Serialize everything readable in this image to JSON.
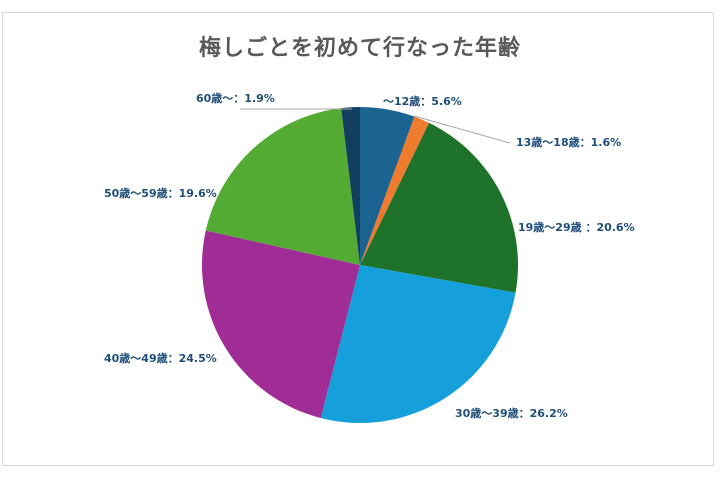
{
  "chart_data": {
    "type": "pie",
    "title": "梅しごとを初めて行なった年齢",
    "start_angle_deg": 0,
    "direction": "clockwise",
    "slices": [
      {
        "label": "〜12歳",
        "value": 5.6,
        "display": "〜12歳：5.6%",
        "color": "#1b6492"
      },
      {
        "label": "13歳〜18歳",
        "value": 1.6,
        "display": "13歳〜18歳：1.6%",
        "color": "#ef7b2f"
      },
      {
        "label": "19歳〜29歳",
        "value": 20.6,
        "display": "19歳〜29歳 ：20.6%",
        "color": "#1e7229"
      },
      {
        "label": "30歳〜39歳",
        "value": 26.2,
        "display": "30歳〜39歳：26.2%",
        "color": "#16a0db"
      },
      {
        "label": "40歳〜49歳",
        "value": 24.5,
        "display": "40歳〜49歳：24.5%",
        "color": "#a02c96"
      },
      {
        "label": "50歳〜59歳",
        "value": 19.6,
        "display": "50歳〜59歳：19.6%",
        "color": "#54ab33"
      },
      {
        "label": "60歳〜",
        "value": 1.9,
        "display": "60歳〜：1.9%",
        "color": "#123f5e"
      }
    ],
    "unit": "%",
    "legend": "none (data labels with leader lines)"
  },
  "labels": {
    "s0": "〜12歳：5.6%",
    "s1": "13歳〜18歳：1.6%",
    "s2": "19歳〜29歳 ：20.6%",
    "s3": "30歳〜39歳：26.2%",
    "s4": "40歳〜49歳：24.5%",
    "s5": "50歳〜59歳：19.6%",
    "s6": "60歳〜：1.9%"
  },
  "colors": {
    "title": "#595959",
    "label": "#1f4e79",
    "leader_line": "#a6a6a6",
    "border": "#d9d9d9"
  }
}
